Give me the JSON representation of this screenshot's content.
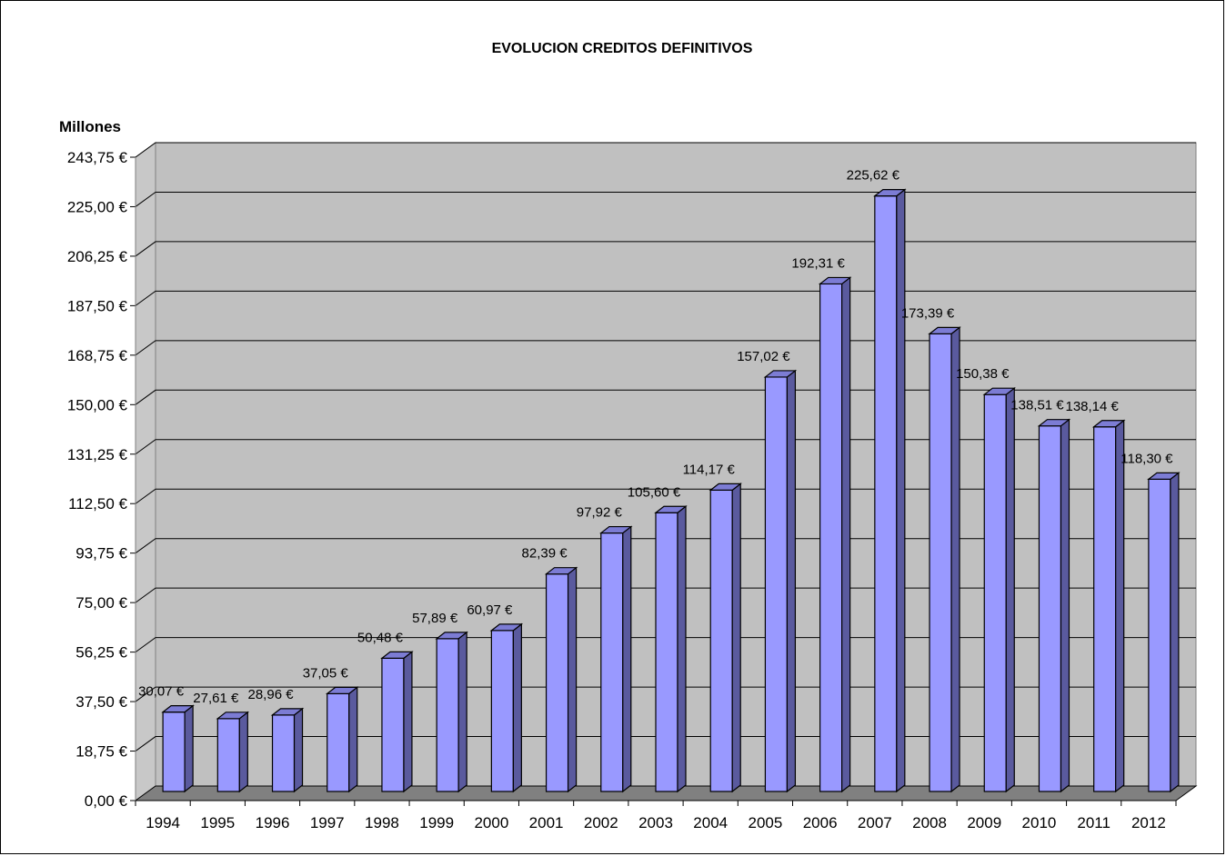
{
  "chart_data": {
    "type": "bar",
    "title": "EVOLUCION CREDITOS DEFINITIVOS",
    "unit_label": "Millones",
    "xlabel": "",
    "ylabel": "",
    "ylim": [
      0,
      243.75
    ],
    "y_ticks": [
      "0,00 €",
      "18,75 €",
      "37,50 €",
      "56,25 €",
      "75,00 €",
      "93,75 €",
      "112,50 €",
      "131,25 €",
      "150,00 €",
      "168,75 €",
      "187,50 €",
      "206,25 €",
      "225,00 €",
      "243,75 €"
    ],
    "y_tick_values": [
      0,
      18.75,
      37.5,
      56.25,
      75,
      93.75,
      112.5,
      131.25,
      150,
      168.75,
      187.5,
      206.25,
      225,
      243.75
    ],
    "categories": [
      "1994",
      "1995",
      "1996",
      "1997",
      "1998",
      "1999",
      "2000",
      "2001",
      "2002",
      "2003",
      "2004",
      "2005",
      "2006",
      "2007",
      "2008",
      "2009",
      "2010",
      "2011",
      "2012"
    ],
    "values": [
      30.07,
      27.61,
      28.96,
      37.05,
      50.48,
      57.89,
      60.97,
      82.39,
      97.92,
      105.6,
      114.17,
      157.02,
      192.31,
      225.62,
      173.39,
      150.38,
      138.51,
      138.14,
      118.3
    ],
    "data_labels": [
      "30,07 €",
      "27,61 €",
      "28,96 €",
      "37,05 €",
      "50,48 €",
      "57,89 €",
      "60,97 €",
      "82,39 €",
      "97,92 €",
      "105,60 €",
      "114,17 €",
      "157,02 €",
      "192,31 €",
      "225,62 €",
      "173,39 €",
      "150,38 €",
      "138,51 €",
      "138,14 €",
      "118,30 €"
    ],
    "grid": true,
    "legend": "none",
    "colors": {
      "bar_front": "#9999ff",
      "bar_side": "#5a5a9e",
      "bar_top": "#7c7cd4",
      "plot_wall": "#c0c0c0",
      "floor": "#808080",
      "grid": "#000000"
    }
  }
}
